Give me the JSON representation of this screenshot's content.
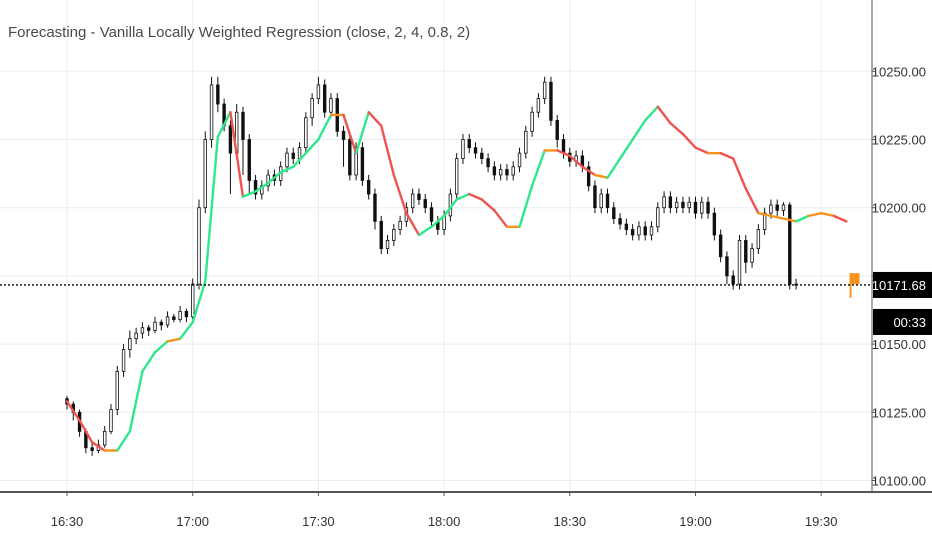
{
  "indicator": {
    "title": "Forecasting - Vanilla Locally Weighted Regression (close, 2, 4, 0.8, 2)"
  },
  "price_tag": {
    "label": "10171.68",
    "value": 10171.68,
    "countdown": "00:33"
  },
  "colors": {
    "up": "#2ee88a",
    "down": "#ef5350",
    "flat": "#f7931a",
    "candle": "#111111",
    "grid": "#e8edf3",
    "axis": "#555555",
    "tag_bg": "#000000",
    "tag_text": "#ffffff",
    "price_line": "#000000"
  },
  "chart_data": {
    "type": "line",
    "title": "Forecasting - Vanilla Locally Weighted Regression (close, 2, 4, 0.8, 2)",
    "xlabel": "",
    "ylabel": "",
    "x_ticks": [
      "16:30",
      "17:00",
      "17:30",
      "18:00",
      "18:30",
      "19:00",
      "19:30"
    ],
    "y_ticks": [
      10100.0,
      10125.0,
      10150.0,
      10175.0,
      10200.0,
      10225.0,
      10250.0
    ],
    "y_tick_labels": [
      "10100.00",
      "10125.00",
      "10150.00",
      "10175.00",
      "10200.00",
      "10225.00",
      "10250.00"
    ],
    "x_range_minutes": [
      0,
      187
    ],
    "ylim": [
      10097,
      10260
    ],
    "grid": true,
    "current_price": 10171.68,
    "series": [
      {
        "values": [
          [
            0,
            10129
          ],
          [
            3,
            10122
          ],
          [
            6,
            10114
          ],
          [
            9,
            10111
          ],
          [
            12,
            10111
          ],
          [
            15,
            10118
          ],
          [
            18,
            10140
          ],
          [
            21,
            10147
          ],
          [
            24,
            10151
          ],
          [
            27,
            10152
          ],
          [
            30,
            10158
          ],
          [
            33,
            10173
          ],
          [
            36,
            10226
          ],
          [
            39,
            10235
          ],
          [
            42,
            10204
          ],
          [
            45,
            10206
          ],
          [
            48,
            10209
          ],
          [
            51,
            10213
          ],
          [
            54,
            10215
          ],
          [
            57,
            10220
          ],
          [
            60,
            10225
          ],
          [
            63,
            10234
          ],
          [
            66,
            10234
          ],
          [
            69,
            10220
          ],
          [
            72,
            10235
          ],
          [
            75,
            10230
          ],
          [
            78,
            10212
          ],
          [
            81,
            10198
          ],
          [
            84,
            10190
          ],
          [
            87,
            10193
          ],
          [
            90,
            10197
          ],
          [
            93,
            10203
          ],
          [
            96,
            10205
          ],
          [
            99,
            10203
          ],
          [
            102,
            10199
          ],
          [
            105,
            10193
          ],
          [
            108,
            10193
          ],
          [
            111,
            10208
          ],
          [
            114,
            10221
          ],
          [
            117,
            10221
          ],
          [
            120,
            10219
          ],
          [
            123,
            10215
          ],
          [
            126,
            10212
          ],
          [
            129,
            10211
          ],
          [
            132,
            10218
          ],
          [
            135,
            10225
          ],
          [
            138,
            10232
          ],
          [
            141,
            10237
          ],
          [
            144,
            10231
          ],
          [
            147,
            10227
          ],
          [
            150,
            10222
          ],
          [
            153,
            10220
          ],
          [
            156,
            10220
          ],
          [
            159,
            10218
          ],
          [
            162,
            10207
          ],
          [
            165,
            10198
          ],
          [
            168,
            10197
          ],
          [
            171,
            10196
          ],
          [
            174,
            10195
          ],
          [
            177,
            10197
          ],
          [
            180,
            10198
          ],
          [
            183,
            10197
          ],
          [
            186,
            10195
          ]
        ]
      }
    ],
    "forecast_flag": {
      "x": 187,
      "y_low": 10167,
      "y_high": 10176
    },
    "candles": [
      [
        0,
        10130,
        10128,
        10131,
        10126
      ],
      [
        1.5,
        10128,
        10125,
        10129,
        10122
      ],
      [
        3,
        10125,
        10118,
        10126,
        10116
      ],
      [
        4.5,
        10118,
        10112,
        10119,
        10110
      ],
      [
        6,
        10112,
        10111,
        10114,
        10109
      ],
      [
        7.5,
        10111,
        10113,
        10115,
        10110
      ],
      [
        9,
        10113,
        10118,
        10120,
        10112
      ],
      [
        10.5,
        10118,
        10126,
        10128,
        10117
      ],
      [
        12,
        10126,
        10140,
        10142,
        10124
      ],
      [
        13.5,
        10140,
        10148,
        10150,
        10138
      ],
      [
        15,
        10148,
        10152,
        10155,
        10145
      ],
      [
        16.5,
        10152,
        10154,
        10156,
        10150
      ],
      [
        18,
        10154,
        10156,
        10158,
        10152
      ],
      [
        19.5,
        10156,
        10155,
        10157,
        10153
      ],
      [
        21,
        10155,
        10158,
        10160,
        10154
      ],
      [
        22.5,
        10158,
        10157,
        10159,
        10155
      ],
      [
        24,
        10157,
        10160,
        10162,
        10156
      ],
      [
        25.5,
        10160,
        10159,
        10161,
        10158
      ],
      [
        27,
        10159,
        10162,
        10164,
        10158
      ],
      [
        28.5,
        10162,
        10160,
        10163,
        10158
      ],
      [
        30,
        10160,
        10172,
        10174,
        10159
      ],
      [
        31.5,
        10172,
        10200,
        10203,
        10170
      ],
      [
        33,
        10200,
        10225,
        10228,
        10198
      ],
      [
        34.5,
        10225,
        10245,
        10248,
        10222
      ],
      [
        36,
        10245,
        10238,
        10248,
        10235
      ],
      [
        37.5,
        10238,
        10230,
        10240,
        10228
      ],
      [
        39,
        10230,
        10220,
        10232,
        10205
      ],
      [
        40.5,
        10220,
        10235,
        10238,
        10218
      ],
      [
        42,
        10235,
        10225,
        10237,
        10212
      ],
      [
        43.5,
        10225,
        10210,
        10227,
        10205
      ],
      [
        45,
        10210,
        10205,
        10212,
        10203
      ],
      [
        46.5,
        10205,
        10208,
        10210,
        10203
      ],
      [
        48,
        10208,
        10212,
        10214,
        10206
      ],
      [
        49.5,
        10212,
        10210,
        10214,
        10208
      ],
      [
        51,
        10210,
        10215,
        10217,
        10208
      ],
      [
        52.5,
        10215,
        10220,
        10222,
        10213
      ],
      [
        54,
        10220,
        10218,
        10222,
        10216
      ],
      [
        55.5,
        10218,
        10222,
        10224,
        10216
      ],
      [
        57,
        10222,
        10233,
        10235,
        10220
      ],
      [
        58.5,
        10233,
        10240,
        10242,
        10230
      ],
      [
        60,
        10240,
        10245,
        10248,
        10238
      ],
      [
        61.5,
        10245,
        10235,
        10247,
        10233
      ],
      [
        63,
        10235,
        10240,
        10242,
        10233
      ],
      [
        64.5,
        10240,
        10228,
        10242,
        10226
      ],
      [
        66,
        10228,
        10225,
        10230,
        10215
      ],
      [
        67.5,
        10225,
        10212,
        10227,
        10210
      ],
      [
        69,
        10212,
        10222,
        10224,
        10210
      ],
      [
        70.5,
        10222,
        10210,
        10224,
        10208
      ],
      [
        72,
        10210,
        10205,
        10212,
        10203
      ],
      [
        73.5,
        10205,
        10195,
        10207,
        10192
      ],
      [
        75,
        10195,
        10185,
        10197,
        10183
      ],
      [
        76.5,
        10185,
        10188,
        10190,
        10183
      ],
      [
        78,
        10188,
        10192,
        10194,
        10186
      ],
      [
        79.5,
        10192,
        10195,
        10197,
        10190
      ],
      [
        81,
        10195,
        10200,
        10202,
        10193
      ],
      [
        82.5,
        10200,
        10205,
        10207,
        10198
      ],
      [
        84,
        10205,
        10203,
        10207,
        10201
      ],
      [
        85.5,
        10203,
        10200,
        10205,
        10198
      ],
      [
        87,
        10200,
        10195,
        10202,
        10193
      ],
      [
        88.5,
        10195,
        10192,
        10197,
        10190
      ],
      [
        90,
        10192,
        10197,
        10199,
        10190
      ],
      [
        91.5,
        10197,
        10205,
        10207,
        10195
      ],
      [
        93,
        10205,
        10218,
        10220,
        10203
      ],
      [
        94.5,
        10218,
        10225,
        10227,
        10216
      ],
      [
        96,
        10225,
        10222,
        10227,
        10220
      ],
      [
        97.5,
        10222,
        10220,
        10224,
        10218
      ],
      [
        99,
        10220,
        10218,
        10222,
        10216
      ],
      [
        100.5,
        10218,
        10215,
        10220,
        10213
      ],
      [
        102,
        10215,
        10212,
        10217,
        10210
      ],
      [
        103.5,
        10212,
        10214,
        10216,
        10210
      ],
      [
        105,
        10214,
        10212,
        10216,
        10210
      ],
      [
        106.5,
        10212,
        10215,
        10217,
        10210
      ],
      [
        108,
        10215,
        10220,
        10222,
        10213
      ],
      [
        109.5,
        10220,
        10228,
        10230,
        10218
      ],
      [
        111,
        10228,
        10235,
        10237,
        10226
      ],
      [
        112.5,
        10235,
        10240,
        10242,
        10233
      ],
      [
        114,
        10240,
        10246,
        10248,
        10238
      ],
      [
        115.5,
        10246,
        10232,
        10248,
        10230
      ],
      [
        117,
        10232,
        10225,
        10234,
        10222
      ],
      [
        118.5,
        10225,
        10220,
        10227,
        10218
      ],
      [
        120,
        10220,
        10217,
        10222,
        10215
      ],
      [
        121.5,
        10217,
        10219,
        10221,
        10215
      ],
      [
        123,
        10219,
        10215,
        10221,
        10213
      ],
      [
        124.5,
        10215,
        10208,
        10217,
        10206
      ],
      [
        126,
        10208,
        10200,
        10210,
        10198
      ],
      [
        127.5,
        10200,
        10205,
        10207,
        10198
      ],
      [
        129,
        10205,
        10200,
        10207,
        10198
      ],
      [
        130.5,
        10200,
        10196,
        10202,
        10194
      ],
      [
        132,
        10196,
        10194,
        10198,
        10192
      ],
      [
        133.5,
        10194,
        10192,
        10196,
        10190
      ],
      [
        135,
        10192,
        10190,
        10194,
        10188
      ],
      [
        136.5,
        10190,
        10193,
        10195,
        10188
      ],
      [
        138,
        10193,
        10190,
        10195,
        10188
      ],
      [
        139.5,
        10190,
        10193,
        10195,
        10188
      ],
      [
        141,
        10193,
        10200,
        10202,
        10191
      ],
      [
        142.5,
        10200,
        10204,
        10206,
        10198
      ],
      [
        144,
        10204,
        10200,
        10206,
        10198
      ],
      [
        145.5,
        10200,
        10202,
        10204,
        10198
      ],
      [
        147,
        10202,
        10200,
        10204,
        10198
      ],
      [
        148.5,
        10200,
        10202,
        10204,
        10198
      ],
      [
        150,
        10202,
        10198,
        10204,
        10196
      ],
      [
        151.5,
        10198,
        10202,
        10204,
        10196
      ],
      [
        153,
        10202,
        10198,
        10204,
        10196
      ],
      [
        154.5,
        10198,
        10190,
        10200,
        10188
      ],
      [
        156,
        10190,
        10182,
        10192,
        10180
      ],
      [
        157.5,
        10182,
        10175,
        10184,
        10172
      ],
      [
        159,
        10175,
        10172,
        10177,
        10170
      ],
      [
        160.5,
        10172,
        10188,
        10190,
        10170
      ],
      [
        162,
        10188,
        10180,
        10190,
        10176
      ],
      [
        163.5,
        10180,
        10185,
        10187,
        10178
      ],
      [
        165,
        10185,
        10192,
        10194,
        10183
      ],
      [
        166.5,
        10192,
        10198,
        10200,
        10190
      ],
      [
        168,
        10198,
        10201,
        10203,
        10196
      ],
      [
        169.5,
        10201,
        10199,
        10203,
        10197
      ],
      [
        171,
        10199,
        10201,
        10202,
        10197
      ],
      [
        172.5,
        10201,
        10172,
        10202,
        10170
      ],
      [
        174,
        10172,
        10171.68,
        10174,
        10170
      ]
    ]
  }
}
